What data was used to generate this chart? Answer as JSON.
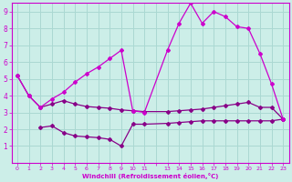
{
  "xlabel": "Windchill (Refroidissement éolien,°C)",
  "bg_color": "#cceee8",
  "grid_color": "#aad8d2",
  "line_color": "#cc00cc",
  "line2_color": "#880088",
  "xlim": [
    -0.5,
    23.5
  ],
  "ylim": [
    0,
    9.5
  ],
  "xtick_labels": [
    "0",
    "1",
    "2",
    "3",
    "4",
    "5",
    "6",
    "7",
    "8",
    "9",
    "10",
    "11",
    "",
    "13",
    "14",
    "15",
    "16",
    "17",
    "18",
    "19",
    "20",
    "21",
    "22",
    "23"
  ],
  "xtick_positions": [
    0,
    1,
    2,
    3,
    4,
    5,
    6,
    7,
    8,
    9,
    10,
    11,
    12,
    13,
    14,
    15,
    16,
    17,
    18,
    19,
    20,
    21,
    22,
    23
  ],
  "yticks": [
    1,
    2,
    3,
    4,
    5,
    6,
    7,
    8,
    9
  ],
  "line1_x": [
    0,
    1,
    2,
    3,
    4,
    5,
    6,
    7,
    8,
    9,
    10,
    11,
    13,
    14,
    15,
    16,
    17,
    18,
    19,
    20,
    21,
    22,
    23
  ],
  "line1_y": [
    5.2,
    4.0,
    3.3,
    3.5,
    3.7,
    3.5,
    3.35,
    3.3,
    3.25,
    3.15,
    3.1,
    3.05,
    3.05,
    3.1,
    3.15,
    3.2,
    3.3,
    3.4,
    3.5,
    3.6,
    3.3,
    3.3,
    2.6
  ],
  "line2_x": [
    2,
    3,
    4,
    5,
    6,
    7,
    8,
    9,
    10,
    11,
    13,
    14,
    15,
    16,
    17,
    18,
    19,
    20,
    21,
    22,
    23
  ],
  "line2_y": [
    2.1,
    2.2,
    1.8,
    1.6,
    1.55,
    1.5,
    1.4,
    1.0,
    2.3,
    2.3,
    2.35,
    2.4,
    2.45,
    2.5,
    2.5,
    2.5,
    2.5,
    2.5,
    2.5,
    2.5,
    2.6
  ],
  "line3_x": [
    0,
    1,
    2,
    3,
    4,
    5,
    6,
    7,
    8,
    9,
    10,
    11,
    13,
    14,
    15,
    16,
    17,
    18,
    19,
    20,
    21,
    22,
    23
  ],
  "line3_y": [
    5.2,
    4.0,
    3.3,
    3.8,
    4.2,
    4.8,
    5.3,
    5.7,
    6.2,
    6.7,
    3.1,
    3.0,
    6.7,
    8.3,
    9.5,
    8.3,
    9.0,
    8.7,
    8.1,
    8.0,
    6.5,
    4.7,
    2.6
  ]
}
